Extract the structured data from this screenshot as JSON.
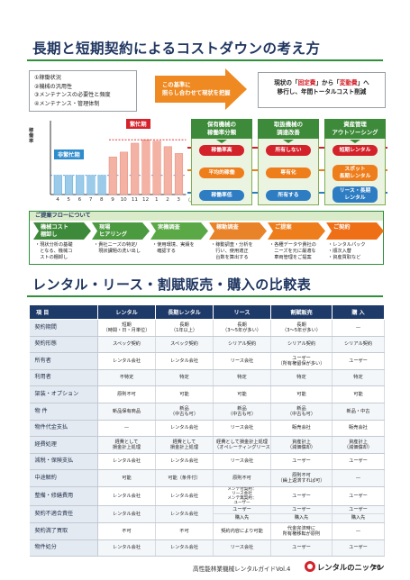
{
  "section1": {
    "title": "長期と短期契約によるコストダウンの考え方",
    "checklist": [
      "①稼働状況",
      "②機械の汎用性",
      "③メンテナンスの必要性と頻度",
      "④メンテナンス・管理体制"
    ],
    "arrow_lines": [
      "この基準に",
      "照らし合わせて現状を把握"
    ],
    "callout": {
      "line1_pre": "現状の「",
      "fixed": "固定費",
      "line1_mid": "」から「",
      "variable": "変動費",
      "line1_post": "」へ",
      "line2": "移行し、年間トータルコスト削減"
    },
    "chart_labels": {
      "y_axis": "稼働率",
      "busy": "繁忙期",
      "quiet": "非繁忙期",
      "month_unit": "（月）"
    },
    "columns": [
      {
        "header": [
          "保有機械の",
          "稼働率分類"
        ],
        "pills": [
          "稼働率高",
          "平均的稼働",
          "稼働率低"
        ]
      },
      {
        "header": [
          "取扱機械の",
          "調達改善"
        ],
        "pills": [
          "所有しない",
          "専有化",
          "所有する"
        ]
      },
      {
        "header": [
          "資産管理",
          "アウトソーシング"
        ],
        "pills": [
          "短期レンタル",
          "スポット\n長期レンタル",
          "リース・長期\nレンタル"
        ]
      }
    ],
    "flow": {
      "title": "ご提案フローについて",
      "steps": [
        {
          "label": [
            "機械コスト",
            "棚卸し"
          ],
          "desc": [
            "・現状分析の基礎",
            "　となる、機械コ",
            "　ストの棚卸し"
          ]
        },
        {
          "label": [
            "現場",
            "ヒアリング"
          ],
          "desc": [
            "・貴社ニーズの特定/",
            "　現状課題の洗い出し"
          ]
        },
        {
          "label": [
            "実機調査"
          ],
          "desc": [
            "・使用環境、実績を",
            "　確認する"
          ]
        },
        {
          "label": [
            "稼動調査"
          ],
          "desc": [
            "・稼動調査・分析を",
            "　行い、使用適正",
            "　台数を算出する"
          ]
        },
        {
          "label": [
            "ご提案"
          ],
          "desc": [
            "・各種データや貴社の",
            "　ニーズを元に最適な",
            "　車両管理をご提案"
          ]
        },
        {
          "label": [
            "ご契約"
          ],
          "desc": [
            "・レンタルパック",
            "・順次入替",
            "・資産買取など"
          ]
        }
      ]
    }
  },
  "section2": {
    "title": "レンタル・リース・割賦販売・購入の比較表",
    "columns": [
      "項 目",
      "レンタル",
      "長期レンタル",
      "リース",
      "割賦販売",
      "購 入"
    ],
    "rows": [
      {
        "item": "契約期間",
        "cells": [
          "短期\n（時間・日・月単位）",
          "長期\n（1年以上）",
          "長期\n（3～5年が多い）",
          "長期\n（3～5年が多い）",
          "—"
        ]
      },
      {
        "item": "契約形態",
        "cells": [
          "スペック契約",
          "スペック契約",
          "シリアル契約",
          "シリアル契約",
          "シリアル契約"
        ]
      },
      {
        "item": "所有者",
        "cells": [
          "レンタル会社",
          "レンタル会社",
          "リース会社",
          "ユーザー\n（所有権留保が多い）",
          "ユーザー"
        ]
      },
      {
        "item": "利用者",
        "cells": [
          "不特定",
          "特定",
          "特定",
          "特定",
          "特定"
        ]
      },
      {
        "item": "架装・オプション",
        "cells": [
          "原則不可",
          "可能",
          "可能",
          "可能",
          "可能"
        ]
      },
      {
        "item": "物 件",
        "cells": [
          "新品保有商品",
          "新品\n（中古も可）",
          "新品\n（中古も可）",
          "新品\n（中古も可）",
          "新品・中古"
        ]
      },
      {
        "item": "物件代金支払",
        "cells": [
          "—",
          "レンタル会社",
          "リース会社",
          "販売会社",
          "販売会社"
        ]
      },
      {
        "item": "経費処理",
        "cells": [
          "経費として\n損金計上処理",
          "経費として\n損金計上処理",
          "経費として損金計上処理\n（オペレーティングリースのみ）",
          "資産計上\n（減価償却）",
          "資産計上\n（減価償却）"
        ]
      },
      {
        "item": "減税・保険支払",
        "cells": [
          "レンタル会社",
          "レンタル会社",
          "リース会社",
          "ユーザー",
          "ユーザー"
        ]
      },
      {
        "item": "中途解約",
        "cells": [
          "可能",
          "可能（条件付）",
          "原則不可",
          "原則不可\n（繰上返済すれば可）",
          "—"
        ]
      },
      {
        "item": "整備・修繕費用",
        "cells": [
          "レンタル会社",
          "レンタル会社",
          [
            "メンテ付契約：",
            "リース会社",
            "メンテ無契約：",
            "ユーザー"
          ],
          "ユーザー",
          "ユーザー"
        ]
      },
      {
        "item": "契約不適合責任",
        "cells": [
          "レンタル会社",
          "レンタル会社",
          [
            "ユーザー",
            "購入先"
          ],
          [
            "ユーザー",
            "購入先"
          ],
          [
            "ユーザー",
            "購入先"
          ]
        ]
      },
      {
        "item": "契約満了買取",
        "cells": [
          "不可",
          "不可",
          "契約内容により可能",
          "代金完済時に\n所有権移転が原則",
          "—"
        ]
      },
      {
        "item": "物件処分",
        "cells": [
          "レンタル会社",
          "レンタル会社",
          "リース会社",
          "ユーザー",
          "ユーザー"
        ]
      }
    ]
  },
  "footer": {
    "guide": "高性能林業機械レンタルガイドVol.4",
    "logo": "レンタルのニッケン",
    "page": "26"
  },
  "chart_data": {
    "type": "bar",
    "categories": [
      "4",
      "5",
      "6",
      "7",
      "8",
      "9",
      "10",
      "11",
      "12",
      "1",
      "2",
      "3"
    ],
    "values": [
      28,
      28,
      28,
      28,
      28,
      55,
      62,
      75,
      80,
      78,
      70,
      60
    ],
    "ylim": [
      0,
      100
    ],
    "grid": false
  },
  "colors": {
    "navy": "#1e3a68",
    "green": "#3d8a3a",
    "red": "#d3222a",
    "orange": "#ee7d1b",
    "blue": "#2e7dc3",
    "bar_pink": "#f4b2a4",
    "bar_blue": "#9ccbea"
  }
}
